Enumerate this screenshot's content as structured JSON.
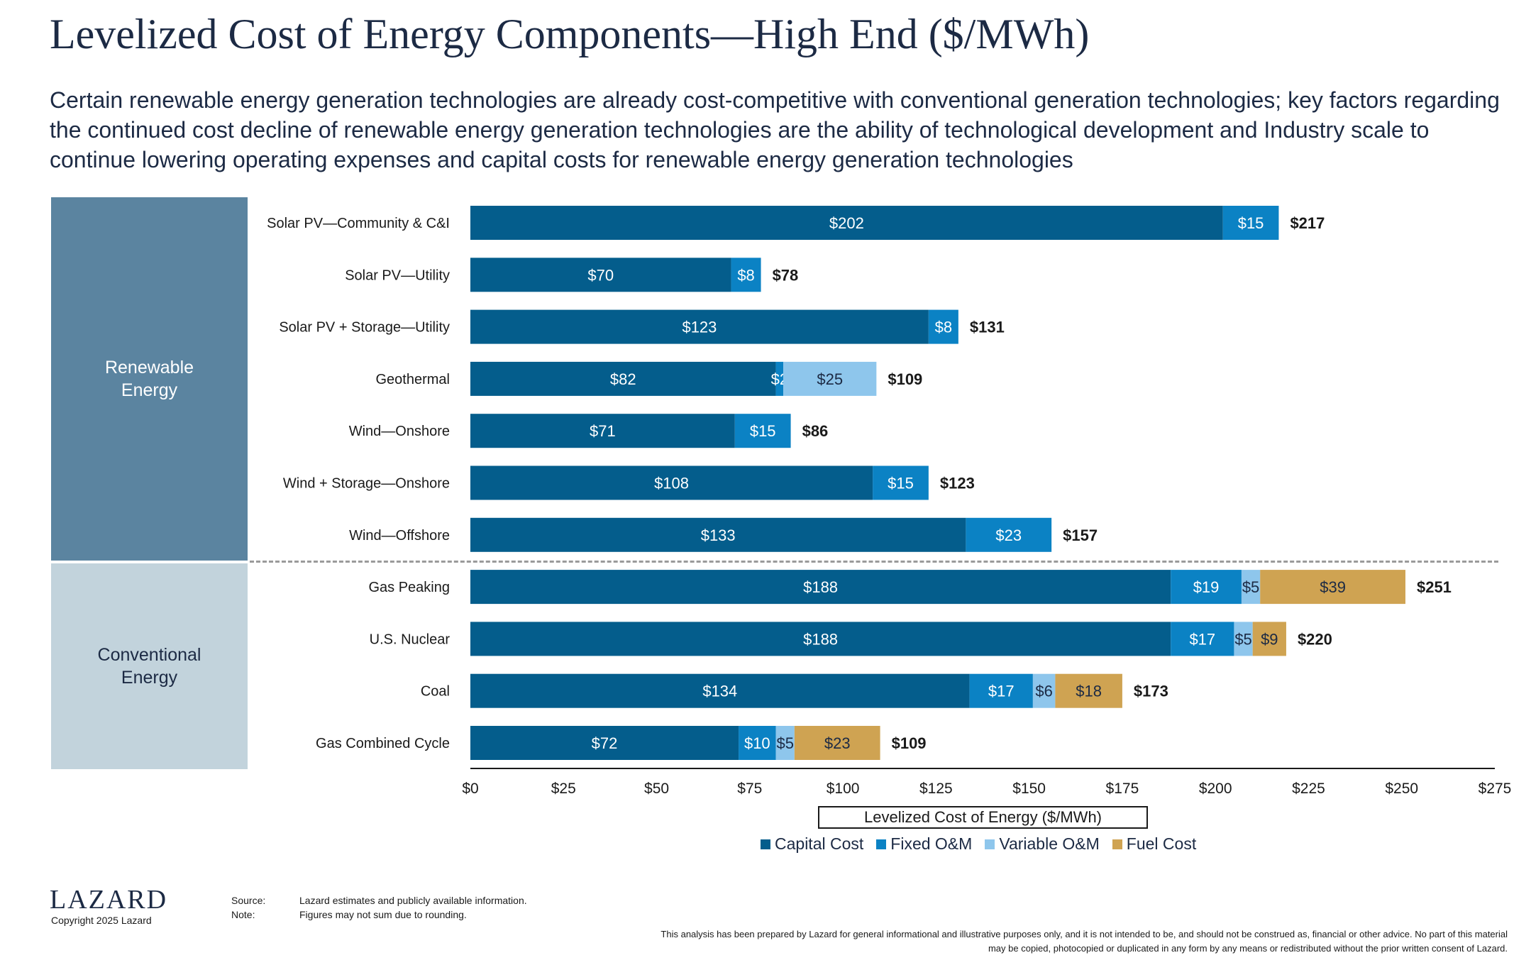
{
  "header": {
    "title": "Levelized Cost of Energy Components—High End ($/MWh)",
    "subtitle": "Certain renewable energy generation technologies are already cost-competitive with conventional generation technologies; key factors regarding the continued cost decline of renewable energy generation technologies are the ability of technological development and Industry scale to continue lowering operating expenses and capital costs for renewable energy generation technologies"
  },
  "groups": {
    "renewable": "Renewable Energy",
    "conventional": "Conventional Energy"
  },
  "colors": {
    "capital": "#045d8c",
    "fixed": "#0b82c4",
    "variable": "#8ec6ec",
    "fuel": "#cfa352"
  },
  "chart_data": {
    "type": "bar",
    "orientation": "horizontal",
    "stacked": true,
    "xlabel": "Levelized Cost of Energy ($/MWh)",
    "xlim": [
      0,
      275
    ],
    "ticks": [
      "$0",
      "$25",
      "$50",
      "$75",
      "$100",
      "$125",
      "$150",
      "$175",
      "$200",
      "$225",
      "$250",
      "$275"
    ],
    "tick_values": [
      0,
      25,
      50,
      75,
      100,
      125,
      150,
      175,
      200,
      225,
      250,
      275
    ],
    "categories": [
      "Solar PV—Community & C&I",
      "Solar PV—Utility",
      "Solar PV + Storage—Utility",
      "Geothermal",
      "Wind—Onshore",
      "Wind + Storage—Onshore",
      "Wind—Offshore",
      "Gas Peaking",
      "U.S. Nuclear",
      "Coal",
      "Gas Combined Cycle"
    ],
    "series": [
      {
        "name": "Capital Cost",
        "values": [
          202,
          70,
          123,
          82,
          71,
          108,
          133,
          188,
          188,
          134,
          72
        ]
      },
      {
        "name": "Fixed O&M",
        "values": [
          15,
          8,
          8,
          2,
          15,
          15,
          23,
          19,
          17,
          17,
          10
        ]
      },
      {
        "name": "Variable O&M",
        "values": [
          0,
          0,
          0,
          25,
          0,
          0,
          0,
          5,
          5,
          6,
          5
        ]
      },
      {
        "name": "Fuel Cost",
        "values": [
          0,
          0,
          0,
          0,
          0,
          0,
          0,
          39,
          9,
          18,
          23
        ]
      }
    ],
    "totals": [
      217,
      78,
      131,
      109,
      86,
      123,
      157,
      251,
      220,
      173,
      109
    ],
    "grid": false,
    "legend_position": "bottom"
  },
  "footer": {
    "logo": "LAZARD",
    "copyright": "Copyright 2025 Lazard",
    "source_key": "Source:",
    "source_text": "Lazard estimates and publicly available information.",
    "note_key": "Note:",
    "note_text": "Figures may not sum due to rounding.",
    "disclaimer": "This analysis has been prepared by Lazard for general informational and illustrative purposes only, and it is not intended to be, and should not be construed as, financial or other advice. No part of this material may be copied, photocopied or duplicated in any form by any means or redistributed without the prior written consent of Lazard."
  }
}
